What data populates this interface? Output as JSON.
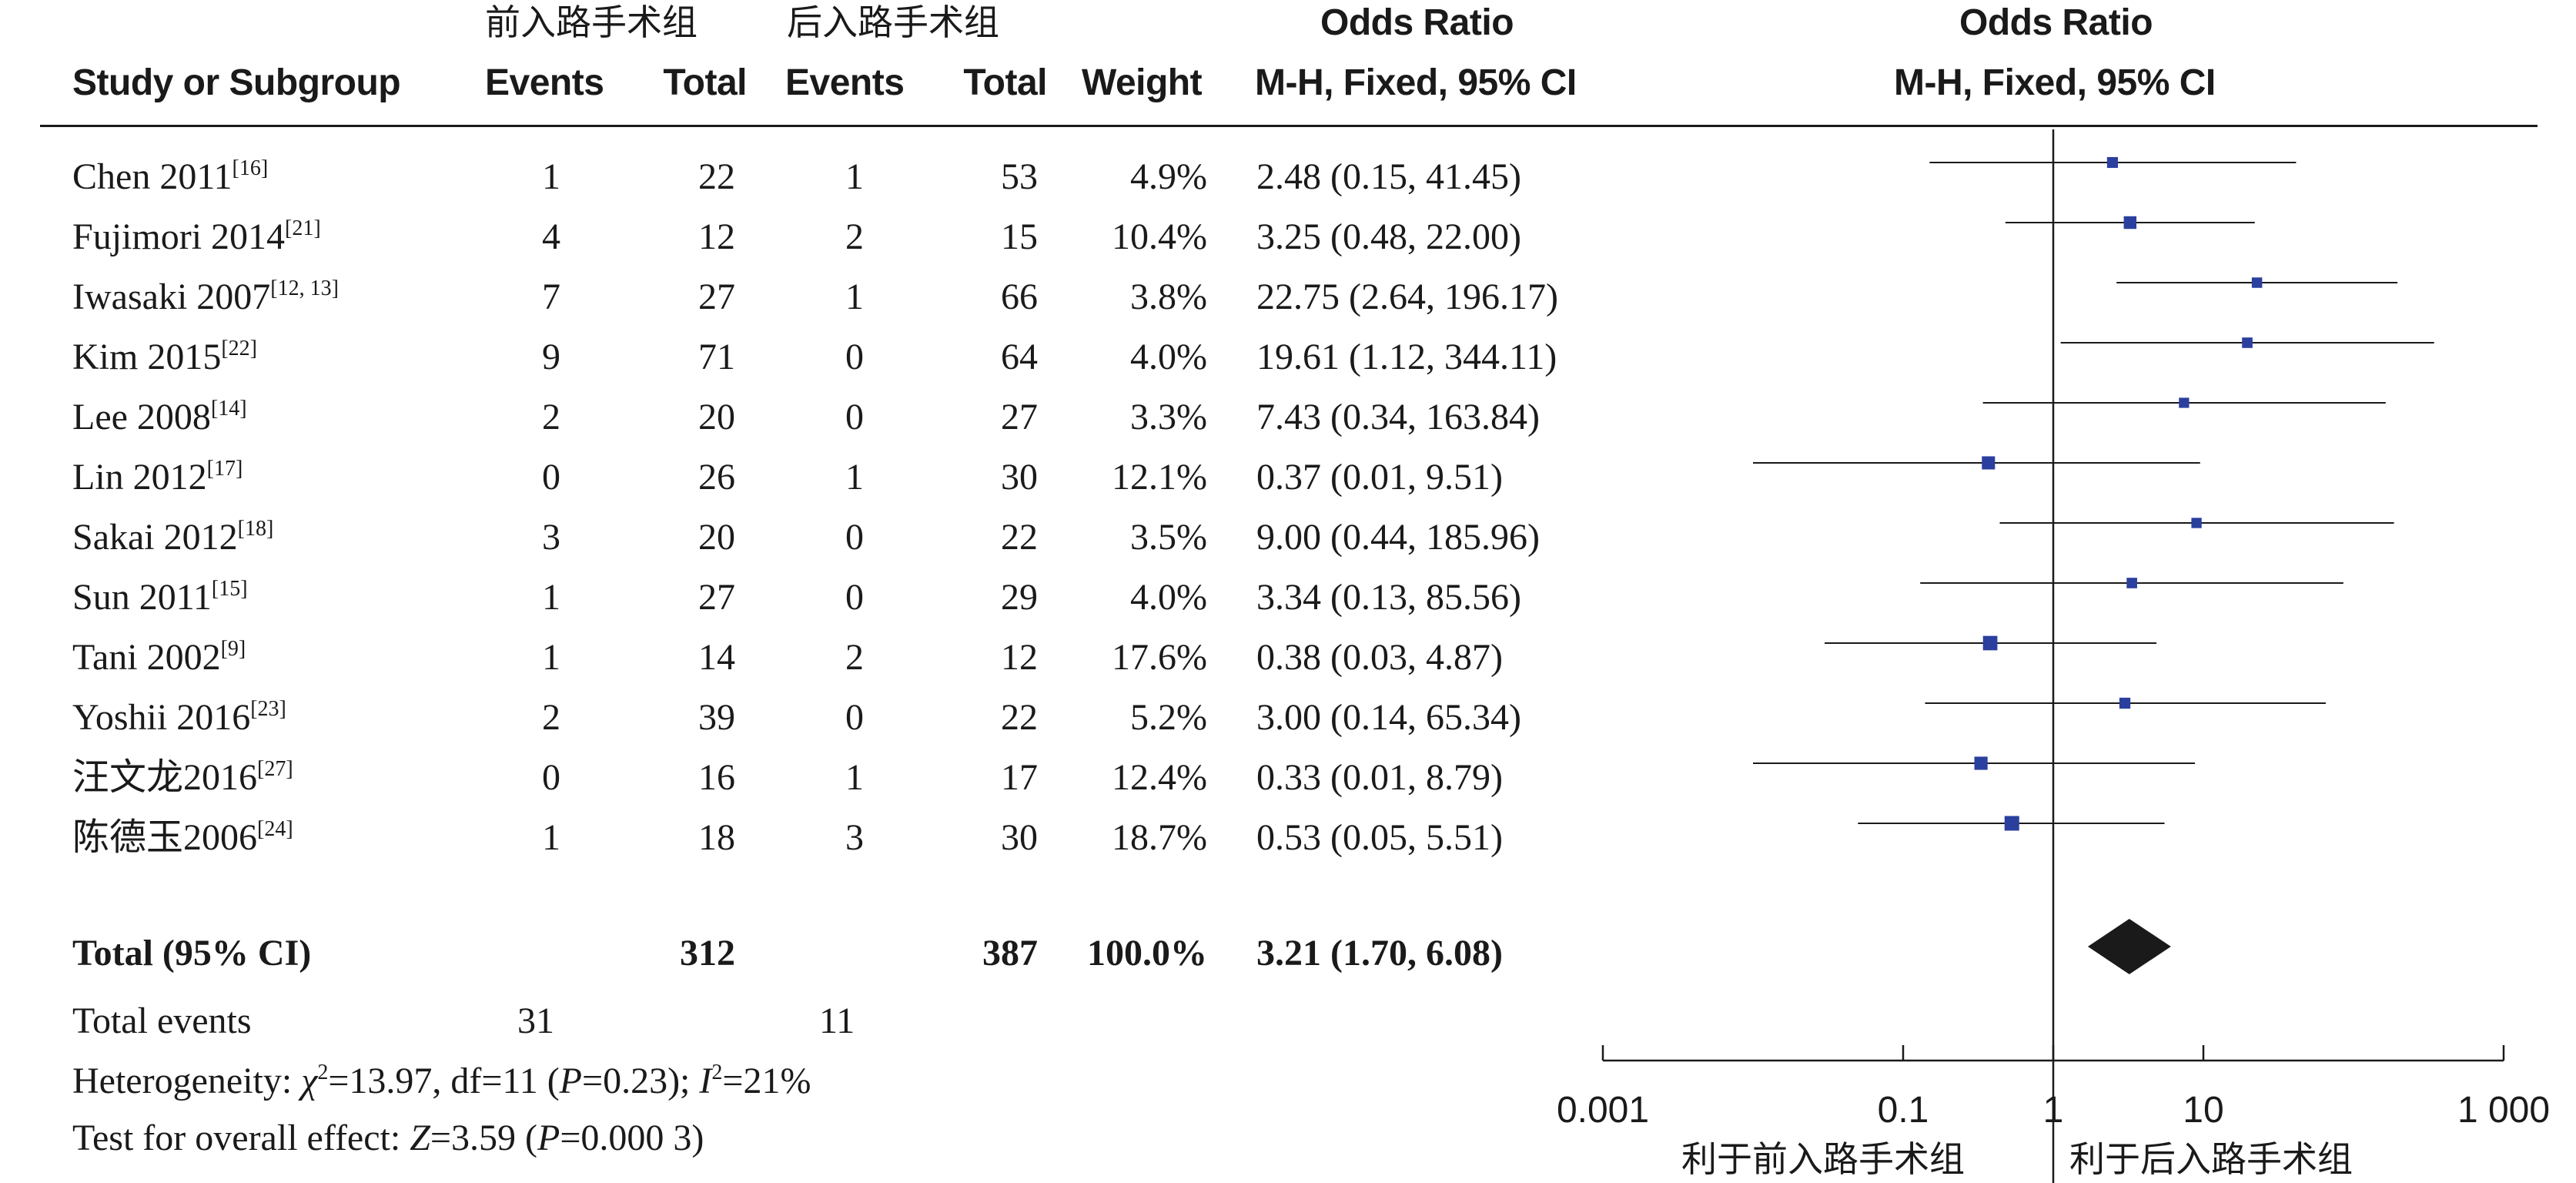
{
  "colors": {
    "marker": "#2b3f9e",
    "line": "#1a1a1a",
    "diamond": "#1a1a1a"
  },
  "header": {
    "group1": "前入路手术组",
    "group2": "后入路手术组",
    "or_title": "Odds Ratio",
    "plot_title": "Odds Ratio",
    "study": "Study or Subgroup",
    "events1": "Events",
    "total1": "Total",
    "events2": "Events",
    "total2": "Total",
    "weight": "Weight",
    "method": "M-H, Fixed, 95% CI",
    "plot_method": "M-H, Fixed, 95% CI"
  },
  "studies": [
    {
      "name": "Chen 2011",
      "ref": "[16]",
      "events1": "1",
      "total1": "22",
      "events2": "1",
      "total2": "53",
      "weight": "4.9%",
      "ci_text": "2.48 (0.15, 41.45)"
    },
    {
      "name": "Fujimori 2014",
      "ref": "[21]",
      "events1": "4",
      "total1": "12",
      "events2": "2",
      "total2": "15",
      "weight": "10.4%",
      "ci_text": "3.25 (0.48, 22.00)"
    },
    {
      "name": "Iwasaki 2007",
      "ref": "[12, 13]",
      "events1": "7",
      "total1": "27",
      "events2": "1",
      "total2": "66",
      "weight": "3.8%",
      "ci_text": "22.75 (2.64, 196.17)"
    },
    {
      "name": "Kim 2015",
      "ref": "[22]",
      "events1": "9",
      "total1": "71",
      "events2": "0",
      "total2": "64",
      "weight": "4.0%",
      "ci_text": "19.61 (1.12, 344.11)"
    },
    {
      "name": "Lee 2008",
      "ref": "[14]",
      "events1": "2",
      "total1": "20",
      "events2": "0",
      "total2": "27",
      "weight": "3.3%",
      "ci_text": "7.43 (0.34, 163.84)"
    },
    {
      "name": "Lin 2012",
      "ref": "[17]",
      "events1": "0",
      "total1": "26",
      "events2": "1",
      "total2": "30",
      "weight": "12.1%",
      "ci_text": "0.37 (0.01, 9.51)"
    },
    {
      "name": "Sakai 2012",
      "ref": "[18]",
      "events1": "3",
      "total1": "20",
      "events2": "0",
      "total2": "22",
      "weight": "3.5%",
      "ci_text": "9.00 (0.44, 185.96)"
    },
    {
      "name": "Sun 2011",
      "ref": "[15]",
      "events1": "1",
      "total1": "27",
      "events2": "0",
      "total2": "29",
      "weight": "4.0%",
      "ci_text": "3.34 (0.13, 85.56)"
    },
    {
      "name": "Tani 2002",
      "ref": "[9]",
      "events1": "1",
      "total1": "14",
      "events2": "2",
      "total2": "12",
      "weight": "17.6%",
      "ci_text": "0.38 (0.03, 4.87)"
    },
    {
      "name": "Yoshii 2016",
      "ref": "[23]",
      "events1": "2",
      "total1": "39",
      "events2": "0",
      "total2": "22",
      "weight": "5.2%",
      "ci_text": "3.00 (0.14, 65.34)"
    },
    {
      "name": "汪文龙2016",
      "ref": "[27]",
      "events1": "0",
      "total1": "16",
      "events2": "1",
      "total2": "17",
      "weight": "12.4%",
      "ci_text": "0.33 (0.01, 8.79)"
    },
    {
      "name": "陈德玉2006",
      "ref": "[24]",
      "events1": "1",
      "total1": "18",
      "events2": "3",
      "total2": "30",
      "weight": "18.7%",
      "ci_text": "0.53 (0.05, 5.51)"
    }
  ],
  "total": {
    "label": "Total (95% CI)",
    "total1": "312",
    "total2": "387",
    "weight": "100.0%",
    "ci_text": "3.21 (1.70, 6.08)"
  },
  "events_row": {
    "label": "Total events",
    "events1": "31",
    "events2": "11"
  },
  "heterogeneity": {
    "prefix": "Heterogeneity: ",
    "chi": "χ",
    "chi_sq": "2",
    "rest1": "=13.97, df=11 (",
    "p": "P",
    "rest2": "=0.23); ",
    "i": "I",
    "i_sq": "2",
    "rest3": "=21%"
  },
  "overall": {
    "prefix": "Test for overall effect: ",
    "z": "Z",
    "rest1": "=3.59 (",
    "p": "P",
    "rest2": "=0.000 3)"
  },
  "axis": {
    "ticks": [
      "0.001",
      "0.1",
      "1",
      "10",
      "1 000"
    ],
    "favours_left": "利于前入路手术组",
    "favours_right": "利于后入路手术组"
  },
  "chart_data": {
    "type": "forest",
    "title": "Odds Ratio",
    "subtitle": "M-H, Fixed, 95% CI",
    "x_scale": "log",
    "xlim": [
      0.001,
      1000
    ],
    "xticks": [
      0.001,
      0.1,
      1,
      10,
      1000
    ],
    "reference_line": 1,
    "xlabel_left": "利于前入路手术组",
    "xlabel_right": "利于后入路手术组",
    "series": [
      {
        "study": "Chen 2011",
        "or": 2.48,
        "lo": 0.15,
        "hi": 41.45,
        "weight": 4.9
      },
      {
        "study": "Fujimori 2014",
        "or": 3.25,
        "lo": 0.48,
        "hi": 22.0,
        "weight": 10.4
      },
      {
        "study": "Iwasaki 2007",
        "or": 22.75,
        "lo": 2.64,
        "hi": 196.17,
        "weight": 3.8
      },
      {
        "study": "Kim 2015",
        "or": 19.61,
        "lo": 1.12,
        "hi": 344.11,
        "weight": 4.0
      },
      {
        "study": "Lee 2008",
        "or": 7.43,
        "lo": 0.34,
        "hi": 163.84,
        "weight": 3.3
      },
      {
        "study": "Lin 2012",
        "or": 0.37,
        "lo": 0.01,
        "hi": 9.51,
        "weight": 12.1
      },
      {
        "study": "Sakai 2012",
        "or": 9.0,
        "lo": 0.44,
        "hi": 185.96,
        "weight": 3.5
      },
      {
        "study": "Sun 2011",
        "or": 3.34,
        "lo": 0.13,
        "hi": 85.56,
        "weight": 4.0
      },
      {
        "study": "Tani 2002",
        "or": 0.38,
        "lo": 0.03,
        "hi": 4.87,
        "weight": 17.6
      },
      {
        "study": "Yoshii 2016",
        "or": 3.0,
        "lo": 0.14,
        "hi": 65.34,
        "weight": 5.2
      },
      {
        "study": "汪文龙2016",
        "or": 0.33,
        "lo": 0.01,
        "hi": 8.79,
        "weight": 12.4
      },
      {
        "study": "陈德玉2006",
        "or": 0.53,
        "lo": 0.05,
        "hi": 5.51,
        "weight": 18.7
      }
    ],
    "pooled": {
      "study": "Total (95% CI)",
      "or": 3.21,
      "lo": 1.7,
      "hi": 6.08,
      "weight": 100.0
    }
  }
}
